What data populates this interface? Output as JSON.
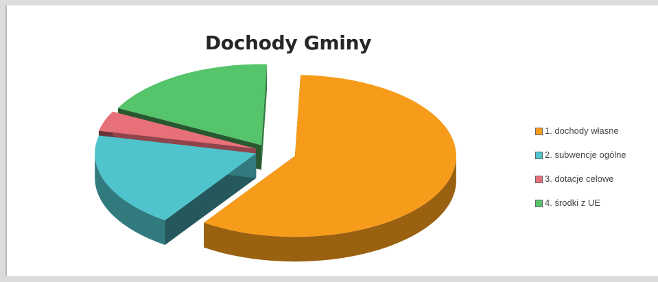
{
  "chart_data": {
    "type": "pie",
    "title": "Dochody Gminy",
    "categories": [
      "1. dochody własne",
      "2. subwencje ogólne",
      "3. dotacje celowe",
      "4. środki z UE"
    ],
    "values": [
      59,
      19,
      4,
      18
    ],
    "colors": [
      "#f79c1a",
      "#4fc4cc",
      "#e8707a",
      "#56c46a"
    ],
    "legend_position": "right",
    "exploded": true,
    "three_d": true
  }
}
